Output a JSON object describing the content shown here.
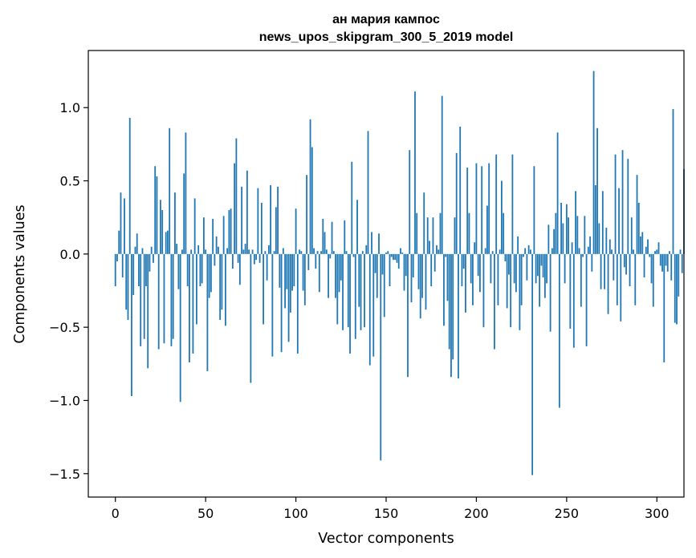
{
  "chart_data": {
    "type": "bar",
    "title": "ан мария кампос",
    "subtitle": "news_upos_skipgram_300_5_2019 model",
    "xlabel": "Vector components",
    "ylabel": "Components values",
    "xlim": [
      -15,
      315
    ],
    "ylim": [
      -1.66,
      1.39
    ],
    "xticks": [
      0,
      50,
      100,
      150,
      200,
      250,
      300
    ],
    "xtick_labels": [
      "0",
      "50",
      "100",
      "150",
      "200",
      "250",
      "300"
    ],
    "yticks": [
      1.0,
      0.5,
      0.0,
      -0.5,
      -1.0,
      -1.5
    ],
    "ytick_labels": [
      "1.0",
      "0.5",
      "0.0",
      "−0.5",
      "−1.0",
      "−1.5"
    ],
    "bar_color": "#1f77b4",
    "values": [
      -0.22,
      -0.05,
      0.16,
      0.42,
      -0.16,
      0.38,
      -0.38,
      -0.45,
      0.93,
      -0.97,
      -0.28,
      0.05,
      0.14,
      -0.22,
      -0.63,
      0.04,
      -0.58,
      -0.22,
      -0.78,
      -0.12,
      0.05,
      -0.06,
      0.6,
      0.53,
      -0.65,
      0.37,
      0.3,
      -0.61,
      0.15,
      0.16,
      0.86,
      -0.63,
      -0.58,
      0.42,
      0.07,
      -0.24,
      -1.01,
      0.03,
      0.55,
      0.83,
      -0.22,
      -0.74,
      0.03,
      -0.68,
      0.38,
      -0.48,
      0.06,
      -0.22,
      -0.2,
      0.25,
      0.03,
      -0.8,
      -0.3,
      -0.26,
      0.24,
      -0.08,
      0.12,
      0.05,
      -0.45,
      -0.38,
      0.26,
      -0.49,
      0.04,
      0.3,
      0.31,
      -0.1,
      0.62,
      0.79,
      -0.06,
      -0.21,
      0.46,
      0.03,
      0.07,
      0.57,
      0.03,
      -0.88,
      0.03,
      -0.07,
      -0.04,
      0.45,
      -0.06,
      0.35,
      -0.48,
      0.02,
      -0.18,
      0.06,
      0.47,
      -0.7,
      0.02,
      0.32,
      0.46,
      -0.23,
      -0.67,
      0.04,
      -0.37,
      -0.24,
      -0.6,
      -0.4,
      -0.25,
      -0.22,
      0.31,
      -0.68,
      0.03,
      0.02,
      -0.25,
      -0.35,
      0.54,
      -0.11,
      0.92,
      0.73,
      0.04,
      -0.1,
      0.02,
      -0.26,
      0.02,
      0.24,
      0.15,
      0.03,
      -0.3,
      -0.03,
      0.22,
      0.02,
      -0.3,
      -0.48,
      -0.26,
      -0.18,
      -0.52,
      0.23,
      0.02,
      -0.5,
      -0.68,
      0.63,
      -0.02,
      -0.58,
      0.37,
      -0.36,
      -0.52,
      0.02,
      -0.5,
      0.06,
      0.84,
      -0.76,
      0.15,
      -0.7,
      -0.13,
      -0.3,
      0.14,
      -1.41,
      -0.14,
      -0.43,
      0.01,
      0.02,
      -0.22,
      -0.02,
      -0.04,
      -0.04,
      -0.06,
      -0.1,
      0.04,
      0.01,
      -0.25,
      -0.15,
      -0.84,
      0.71,
      -0.33,
      -0.16,
      1.11,
      0.28,
      -0.24,
      -0.44,
      -0.3,
      0.42,
      -0.38,
      0.25,
      0.09,
      -0.22,
      0.25,
      -0.12,
      0.06,
      0.03,
      0.28,
      1.08,
      -0.49,
      -0.02,
      -0.32,
      -0.65,
      -0.84,
      -0.72,
      0.25,
      0.69,
      -0.85,
      0.87,
      -0.22,
      -0.1,
      -0.4,
      0.59,
      0.28,
      -0.2,
      -0.35,
      0.08,
      0.62,
      -0.15,
      -0.26,
      0.6,
      -0.5,
      0.04,
      0.33,
      0.62,
      -0.2,
      0.02,
      -0.65,
      0.68,
      -0.35,
      0.03,
      0.5,
      0.28,
      -0.05,
      -0.37,
      -0.14,
      -0.5,
      0.68,
      -0.2,
      -0.26,
      0.12,
      -0.52,
      -0.35,
      -0.02,
      0.04,
      -0.18,
      0.06,
      0.03,
      -1.51,
      0.6,
      -0.2,
      -0.15,
      -0.36,
      -0.08,
      -0.16,
      -0.3,
      -0.2,
      0.2,
      -0.53,
      0.04,
      0.17,
      0.28,
      0.83,
      -1.05,
      0.35,
      0.21,
      -0.2,
      0.34,
      0.25,
      -0.51,
      0.08,
      -0.64,
      0.43,
      0.26,
      0.04,
      -0.36,
      -0.02,
      0.26,
      -0.63,
      0.05,
      0.12,
      -0.12,
      1.25,
      0.47,
      0.86,
      0.21,
      -0.24,
      0.43,
      -0.24,
      0.18,
      -0.41,
      0.1,
      0.03,
      -0.18,
      0.68,
      -0.35,
      0.45,
      -0.46,
      0.71,
      -0.09,
      -0.14,
      0.65,
      -0.22,
      0.25,
      0.03,
      -0.35,
      0.54,
      0.35,
      0.12,
      0.15,
      -0.16,
      0.05,
      0.1,
      -0.02,
      -0.2,
      -0.36,
      0.02,
      0.03,
      0.08,
      -0.08,
      -0.12,
      -0.74,
      -0.08,
      -0.12,
      0.02,
      -0.18,
      0.99,
      -0.47,
      -0.48,
      -0.29,
      0.03,
      -0.13,
      0.58
    ]
  }
}
